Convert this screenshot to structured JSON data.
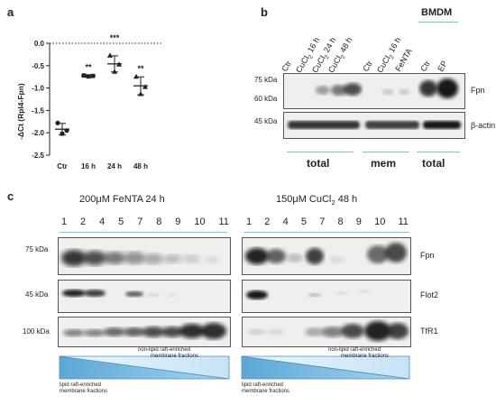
{
  "panel_a": {
    "letter": "a",
    "ylabel": "-ΔCt (Rpl4-Fpn)",
    "yticks": [
      "0.0",
      "-0.5",
      "-1.0",
      "-1.5",
      "-2.0",
      "-2.5"
    ],
    "significance": [
      "**",
      "***",
      "**"
    ]
  },
  "chart_data": {
    "type": "scatter",
    "categories": [
      "Ctr",
      "16 h",
      "24 h",
      "48 h"
    ],
    "ylabel": "-ΔCt (Rpl4-Fpn)",
    "ylim": [
      -2.5,
      0.0
    ],
    "reference_line": 0.0,
    "series": [
      {
        "points": [
          [
            -1.78,
            -1.95,
            -2.02
          ],
          [
            -0.72,
            -0.73,
            -0.74
          ],
          [
            -0.27,
            -0.47,
            -0.63
          ],
          [
            -0.74,
            -0.97,
            -1.13
          ]
        ],
        "means": [
          -1.92,
          -0.73,
          -0.46,
          -0.95
        ],
        "errors": [
          0.13,
          0.01,
          0.18,
          0.2
        ]
      }
    ],
    "significance": [
      "",
      "**",
      "***",
      "**"
    ]
  },
  "panel_b": {
    "letter": "b",
    "lanes": [
      "Ctr",
      "CuCl2 16 h",
      "CuCl2 24 h",
      "CuCl2 48 h",
      "Ctr",
      "CuCl2 16 h",
      "FeNTA",
      "Ctr",
      "EP"
    ],
    "bmdm": "BMDM",
    "markers_fpn": [
      "75 kDa",
      "60 kDa"
    ],
    "marker_actin": "45 kDa",
    "labels": [
      "Fpn",
      "β-actin"
    ],
    "groups": [
      "total",
      "mem",
      "total"
    ]
  },
  "panel_c": {
    "letter": "c",
    "left_title": "200μM FeNTA 24 h",
    "right_title": "150μM CuCl2 48 h",
    "fractions": [
      "1",
      "2",
      "4",
      "5",
      "7",
      "8",
      "9",
      "10",
      "11"
    ],
    "markers": [
      "75 kDa",
      "45 kDa",
      "100 kDa"
    ],
    "row_labels": [
      "Fpn",
      "Flot2",
      "TfR1"
    ],
    "non_lipid": [
      "non-lipid raft-enriched",
      "membrane fractions"
    ],
    "lipid": [
      "lipid raft-enriched",
      "membrane fractions"
    ]
  }
}
